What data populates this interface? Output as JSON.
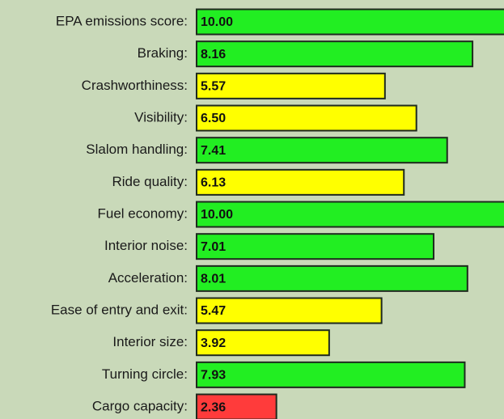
{
  "chart_data": {
    "type": "hbar",
    "categories": [
      "EPA emissions score:",
      "Braking:",
      "Crashworthiness:",
      "Visibility:",
      "Slalom handling:",
      "Ride quality:",
      "Fuel economy:",
      "Interior noise:",
      "Acceleration:",
      "Ease of entry and exit:",
      "Interior size:",
      "Turning circle:",
      "Cargo capacity:"
    ],
    "values": [
      10,
      8.16,
      5.57,
      6.5,
      7.41,
      6.13,
      10,
      7.01,
      8.01,
      5.47,
      3.92,
      7.93,
      2.36
    ],
    "value_labels": [
      "10.00",
      "8.16",
      "5.57",
      "6.50",
      "7.41",
      "6.13",
      "10.00",
      "7.01",
      "8.01",
      "5.47",
      "3.92",
      "7.93",
      "2.36"
    ],
    "colors": [
      "#22ee22",
      "#22ee22",
      "#ffff00",
      "#ffff00",
      "#22ee22",
      "#ffff00",
      "#22ee22",
      "#22ee22",
      "#22ee22",
      "#ffff00",
      "#ffff00",
      "#22ee22",
      "#ff3b3b"
    ]
  }
}
